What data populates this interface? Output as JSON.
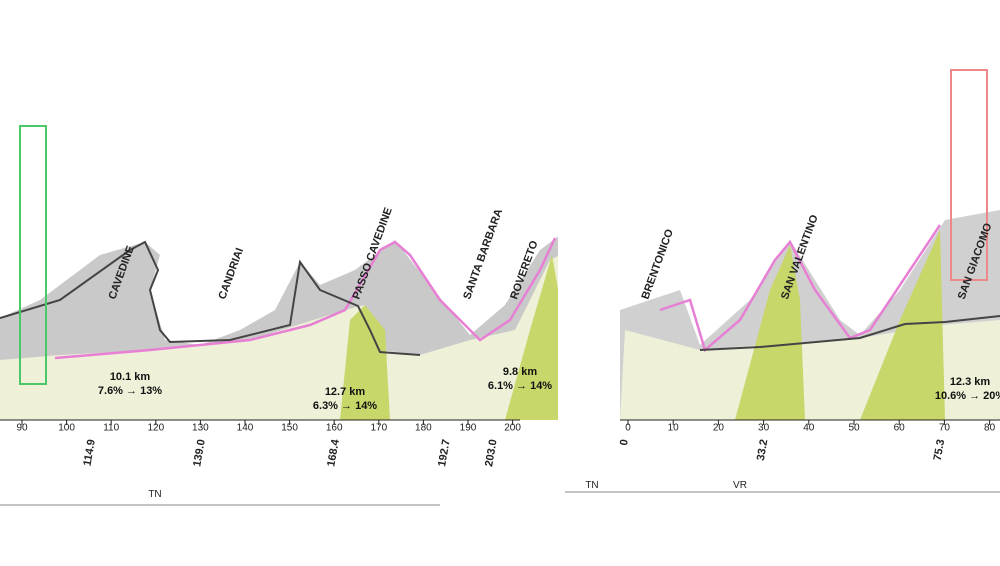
{
  "left_profile": {
    "km_ticks": [
      90,
      100,
      110,
      120,
      130,
      140,
      150,
      160,
      170,
      180,
      190,
      200
    ],
    "places": [
      {
        "km": "114.9",
        "name": "CAVEDINE"
      },
      {
        "km": "139.0",
        "name": "CANDRIAI"
      },
      {
        "km": "168.4",
        "name": "PASSO CAVEDINE"
      },
      {
        "km": "192.7",
        "name": "SANTA BARBARA"
      },
      {
        "km": "203.0",
        "name": "ROVERETO"
      }
    ],
    "climbs": [
      {
        "length": "10.1 km",
        "gradient": "7.6% → 13%"
      },
      {
        "length": "12.7 km",
        "gradient": "6.3% → 14%"
      },
      {
        "length": "9.8 km",
        "gradient": "6.1% → 14%"
      }
    ],
    "region": "TN"
  },
  "right_profile": {
    "km_ticks": [
      0,
      10,
      20,
      30,
      40,
      50,
      60,
      70,
      80
    ],
    "places": [
      {
        "km": "0",
        "name": "BRENTONICO"
      },
      {
        "km": "33.2",
        "name": "SAN VALENTINO"
      },
      {
        "km": "75.3",
        "name": "SAN GIACOMO"
      }
    ],
    "climbs": [
      {
        "length": "12.3 km",
        "gradient": "10.6% → 20%"
      }
    ],
    "regions": [
      "TN",
      "VR"
    ]
  }
}
